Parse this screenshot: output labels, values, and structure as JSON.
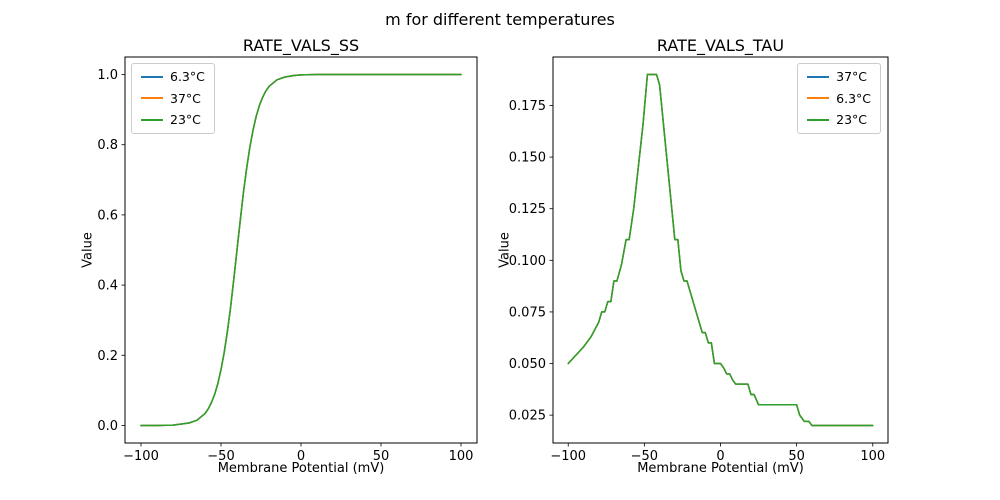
{
  "figure": {
    "suptitle": "m for different temperatures",
    "background": "#ffffff"
  },
  "chart_data": [
    {
      "type": "line",
      "title": "RATE_VALS_SS",
      "xlabel": "Membrane Potential (mV)",
      "ylabel": "Value",
      "xlim": [
        -110,
        110
      ],
      "ylim": [
        -0.05,
        1.05
      ],
      "grid": false,
      "legend_position": "upper left",
      "series_overlap": true,
      "xticks": {
        "values": [
          -100,
          -50,
          0,
          50,
          100
        ],
        "labels": [
          "−100",
          "−50",
          "0",
          "50",
          "100"
        ]
      },
      "yticks": {
        "values": [
          0.0,
          0.2,
          0.4,
          0.6,
          0.8,
          1.0
        ],
        "labels": [
          "0.0",
          "0.2",
          "0.4",
          "0.6",
          "0.8",
          "1.0"
        ]
      },
      "x": [
        -100,
        -90,
        -80,
        -70,
        -65,
        -60,
        -58,
        -56,
        -54,
        -52,
        -50,
        -48,
        -46,
        -44,
        -42,
        -40,
        -38,
        -36,
        -34,
        -32,
        -30,
        -28,
        -26,
        -24,
        -22,
        -20,
        -15,
        -10,
        -5,
        0,
        10,
        20,
        40,
        60,
        80,
        100
      ],
      "values": [
        0.0,
        0.0,
        0.001,
        0.007,
        0.015,
        0.034,
        0.047,
        0.065,
        0.088,
        0.119,
        0.159,
        0.208,
        0.268,
        0.337,
        0.417,
        0.5,
        0.583,
        0.663,
        0.732,
        0.792,
        0.841,
        0.881,
        0.912,
        0.935,
        0.953,
        0.966,
        0.985,
        0.993,
        0.997,
        0.999,
        1.0,
        1.0,
        1.0,
        1.0,
        1.0,
        1.0
      ],
      "series": [
        {
          "name": "6.3°C",
          "color": "#1f77b4"
        },
        {
          "name": "37°C",
          "color": "#ff7f0e"
        },
        {
          "name": "23°C",
          "color": "#2ca02c"
        }
      ]
    },
    {
      "type": "line",
      "title": "RATE_VALS_TAU",
      "xlabel": "Membrane Potential (mV)",
      "ylabel": "Value",
      "xlim": [
        -110,
        110
      ],
      "ylim": [
        0.0115,
        0.1985
      ],
      "grid": false,
      "legend_position": "upper right",
      "series_overlap": true,
      "xticks": {
        "values": [
          -100,
          -50,
          0,
          50,
          100
        ],
        "labels": [
          "−100",
          "−50",
          "0",
          "50",
          "100"
        ]
      },
      "yticks": {
        "values": [
          0.025,
          0.05,
          0.075,
          0.1,
          0.125,
          0.15,
          0.175
        ],
        "labels": [
          "0.025",
          "0.050",
          "0.075",
          "0.100",
          "0.125",
          "0.150",
          "0.175"
        ]
      },
      "x": [
        -100,
        -95,
        -90,
        -85,
        -80,
        -78,
        -76,
        -74,
        -72,
        -70,
        -68,
        -65,
        -62,
        -60,
        -57,
        -54,
        -51,
        -48,
        -46,
        -44,
        -42,
        -40,
        -38,
        -36,
        -34,
        -32,
        -30,
        -28,
        -26,
        -24,
        -22,
        -20,
        -18,
        -16,
        -14,
        -12,
        -10,
        -8,
        -6,
        -4,
        -2,
        0,
        2,
        4,
        6,
        8,
        10,
        12,
        15,
        18,
        20,
        22,
        25,
        30,
        35,
        40,
        45,
        50,
        52,
        55,
        58,
        60,
        65,
        70,
        80,
        90,
        100
      ],
      "values": [
        0.05,
        0.054,
        0.058,
        0.063,
        0.07,
        0.075,
        0.075,
        0.08,
        0.08,
        0.09,
        0.09,
        0.098,
        0.11,
        0.11,
        0.125,
        0.145,
        0.165,
        0.19,
        0.19,
        0.19,
        0.19,
        0.185,
        0.17,
        0.155,
        0.14,
        0.125,
        0.11,
        0.11,
        0.095,
        0.09,
        0.09,
        0.085,
        0.08,
        0.075,
        0.07,
        0.065,
        0.065,
        0.06,
        0.06,
        0.05,
        0.05,
        0.05,
        0.048,
        0.045,
        0.045,
        0.042,
        0.04,
        0.04,
        0.04,
        0.04,
        0.035,
        0.035,
        0.03,
        0.03,
        0.03,
        0.03,
        0.03,
        0.03,
        0.025,
        0.022,
        0.022,
        0.02,
        0.02,
        0.02,
        0.02,
        0.02,
        0.02
      ],
      "series": [
        {
          "name": "37°C",
          "color": "#1f77b4"
        },
        {
          "name": "6.3°C",
          "color": "#ff7f0e"
        },
        {
          "name": "23°C",
          "color": "#2ca02c"
        }
      ]
    }
  ]
}
